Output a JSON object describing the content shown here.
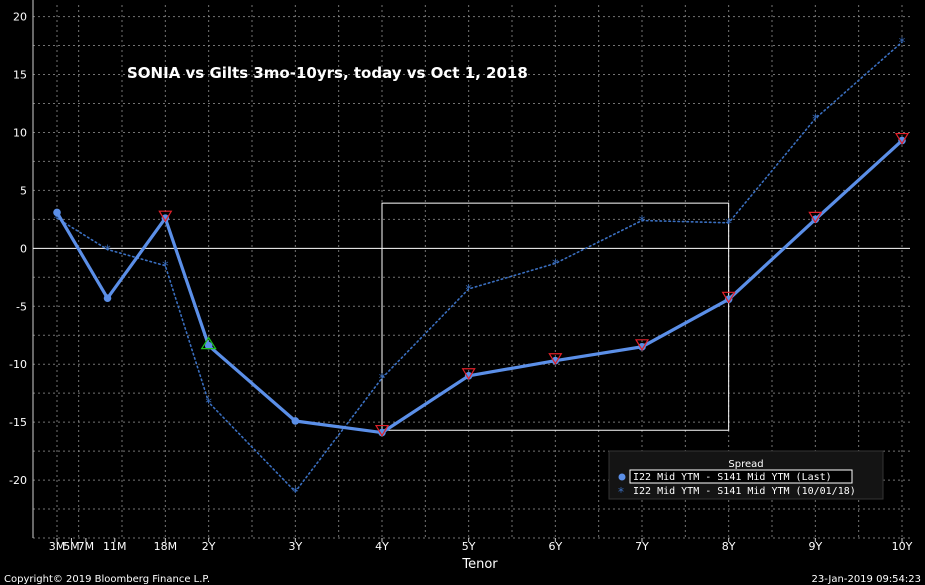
{
  "chart_data": {
    "type": "line",
    "title": "SONIA vs Gilts 3mo-10yrs, today vs Oct 1, 2018",
    "xlabel": "Tenor",
    "ylabel": "",
    "x_ticks": [
      "3M",
      "5M",
      "7M",
      "11M",
      "18M",
      "2Y",
      "3Y",
      "4Y",
      "5Y",
      "6Y",
      "7Y",
      "8Y",
      "9Y",
      "10Y"
    ],
    "x_tick_years": [
      0.25,
      0.4167,
      0.5833,
      0.9167,
      1.5,
      2,
      3,
      4,
      5,
      6,
      7,
      8,
      9,
      10
    ],
    "xlim": [
      0.0,
      10.0
    ],
    "ylim": [
      -25,
      21
    ],
    "y_ticks": [
      20,
      15,
      10,
      5,
      0,
      -5,
      -10,
      -15,
      -20
    ],
    "grid": true,
    "series": [
      {
        "name": "I22 Mid YTM - S141 Mid YTM (Last)",
        "color": "#5b8fe8",
        "style": "solid",
        "x": [
          0.25,
          0.833,
          1.5,
          2,
          3,
          4,
          5,
          6,
          7,
          8,
          9,
          10
        ],
        "values": [
          3.1,
          -4.3,
          2.6,
          -8.4,
          -14.9,
          -15.9,
          -11.0,
          -9.7,
          -8.5,
          -4.4,
          2.5,
          9.3
        ],
        "markers": [
          {
            "i": 2,
            "type": "down"
          },
          {
            "i": 3,
            "type": "up"
          },
          {
            "i": 5,
            "type": "down"
          },
          {
            "i": 6,
            "type": "down"
          },
          {
            "i": 7,
            "type": "down"
          },
          {
            "i": 8,
            "type": "down"
          },
          {
            "i": 9,
            "type": "down"
          },
          {
            "i": 10,
            "type": "down"
          },
          {
            "i": 11,
            "type": "down"
          }
        ]
      },
      {
        "name": "I22 Mid YTM - S141 Mid YTM (10/01/18)",
        "color": "#3a6fc0",
        "style": "dotted",
        "x": [
          0.25,
          0.833,
          1.5,
          2,
          3,
          4,
          5,
          6,
          7,
          8,
          9,
          10
        ],
        "values": [
          2.6,
          -0.1,
          -1.5,
          -13.3,
          -21.0,
          -11.2,
          -3.5,
          -1.3,
          2.4,
          2.2,
          11.2,
          17.8
        ]
      }
    ],
    "zero_line": true,
    "highlight_box": {
      "x0": 4,
      "x1": 8,
      "y0": -15.7,
      "y1": 3.9
    },
    "legend": {
      "title": "Spread",
      "placement": "bottom-right"
    }
  },
  "footer": {
    "copyright": "Copyright© 2019 Bloomberg Finance L.P.",
    "timestamp": "23-Jan-2019 09:54:23"
  },
  "colors": {
    "background": "#000000",
    "grid": "#9a9a9a",
    "marker_down": "#e0202a",
    "marker_up": "#1fc21f"
  }
}
